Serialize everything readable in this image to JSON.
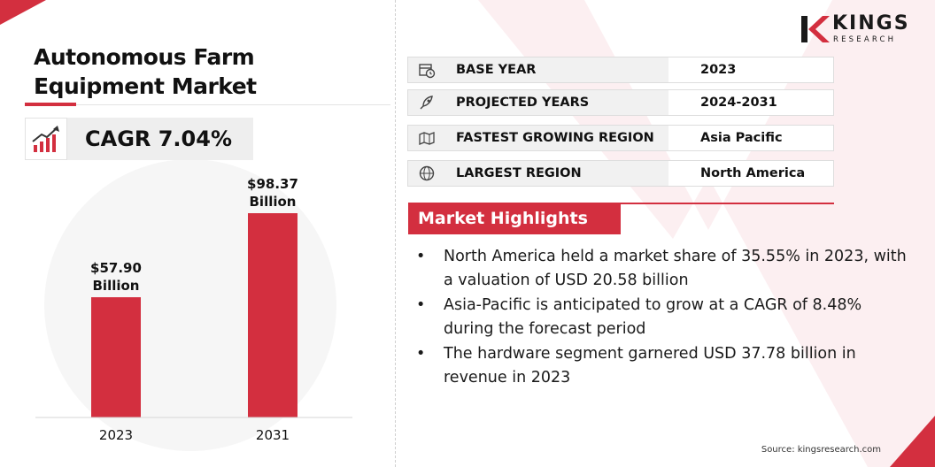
{
  "title_lines": [
    "Autonomous Farm",
    "Equipment Market"
  ],
  "cagr": {
    "label": "CAGR 7.04%",
    "icon": "growth-chart-icon"
  },
  "chart_data": {
    "type": "bar",
    "title": "",
    "xlabel": "",
    "ylabel": "",
    "categories": [
      "2023",
      "2031"
    ],
    "values": [
      57.9,
      98.37
    ],
    "value_labels": [
      [
        "$57.90",
        "Billion"
      ],
      [
        "$98.37",
        "Billion"
      ]
    ],
    "ylim": [
      0,
      115
    ],
    "grid": false,
    "bar_color": "#d32f3f"
  },
  "logo": {
    "initial": "K",
    "name": "KINGS",
    "tagline": "RESEARCH"
  },
  "info_rows": [
    {
      "icon": "calendar-clock-icon",
      "label": "BASE YEAR",
      "value": "2023"
    },
    {
      "icon": "rocket-icon",
      "label": "PROJECTED YEARS",
      "value": "2024-2031"
    },
    {
      "icon": "region-map-icon",
      "label": "FASTEST GROWING REGION",
      "value": "Asia Pacific"
    },
    {
      "icon": "globe-icon",
      "label": "LARGEST REGION",
      "value": "North America"
    }
  ],
  "highlights": {
    "heading": "Market Highlights",
    "bullet": "•",
    "items": [
      "North America held a market share of 35.55% in 2023, with a valuation of USD 20.58 billion",
      "Asia-Pacific is anticipated to grow at a CAGR of 8.48% during the forecast period",
      "The hardware segment garnered USD 37.78 billion in revenue in 2023"
    ]
  },
  "source": "Source: kingsresearch.com",
  "colors": {
    "accent": "#d32f3f",
    "panel": "#f1f1f1",
    "background_shape": "#fbeaec"
  }
}
